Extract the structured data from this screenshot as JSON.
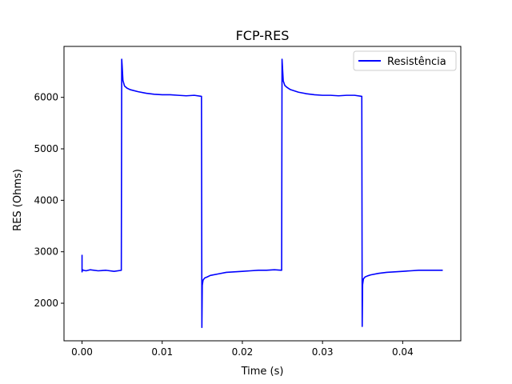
{
  "chart_data": {
    "type": "line",
    "title": "FCP-RES",
    "xlabel": "Time (s)",
    "ylabel": "RES (Ohms)",
    "xlim": [
      -0.00225,
      0.04725
    ],
    "ylim": [
      1270,
      6990
    ],
    "xticks": [
      0.0,
      0.01,
      0.02,
      0.03,
      0.04
    ],
    "xtick_labels": [
      "0.00",
      "0.01",
      "0.02",
      "0.03",
      "0.04"
    ],
    "yticks": [
      2000,
      3000,
      4000,
      5000,
      6000
    ],
    "ytick_labels": [
      "2000",
      "3000",
      "4000",
      "5000",
      "6000"
    ],
    "grid": false,
    "legend": {
      "position": "top-right"
    },
    "series": [
      {
        "name": "Resistência",
        "color": "#0000ff",
        "x": [
          0.0,
          0.0,
          5e-05,
          0.0002,
          0.0005,
          0.001,
          0.002,
          0.003,
          0.004,
          0.0049,
          0.00495,
          0.005,
          0.0051,
          0.0053,
          0.0056,
          0.006,
          0.007,
          0.008,
          0.009,
          0.01,
          0.011,
          0.012,
          0.013,
          0.014,
          0.0149,
          0.01495,
          0.015,
          0.0151,
          0.0153,
          0.0156,
          0.016,
          0.017,
          0.018,
          0.019,
          0.02,
          0.021,
          0.022,
          0.023,
          0.024,
          0.0249,
          0.02495,
          0.025,
          0.0251,
          0.0253,
          0.0256,
          0.026,
          0.027,
          0.028,
          0.029,
          0.03,
          0.031,
          0.032,
          0.033,
          0.034,
          0.0349,
          0.03495,
          0.035,
          0.0351,
          0.0353,
          0.0356,
          0.036,
          0.037,
          0.038,
          0.039,
          0.04,
          0.041,
          0.042,
          0.043,
          0.044,
          0.045
        ],
        "y": [
          2940,
          2610,
          2650,
          2640,
          2630,
          2650,
          2630,
          2640,
          2620,
          2640,
          6740,
          6620,
          6330,
          6220,
          6180,
          6150,
          6110,
          6080,
          6060,
          6050,
          6050,
          6040,
          6030,
          6040,
          6020,
          1530,
          2350,
          2450,
          2490,
          2510,
          2540,
          2570,
          2600,
          2610,
          2620,
          2630,
          2640,
          2640,
          2650,
          2640,
          6740,
          6600,
          6320,
          6230,
          6190,
          6150,
          6100,
          6070,
          6050,
          6040,
          6040,
          6030,
          6040,
          6040,
          6020,
          1550,
          2360,
          2470,
          2510,
          2530,
          2550,
          2580,
          2600,
          2610,
          2620,
          2630,
          2640,
          2640,
          2640,
          2640
        ]
      }
    ]
  }
}
